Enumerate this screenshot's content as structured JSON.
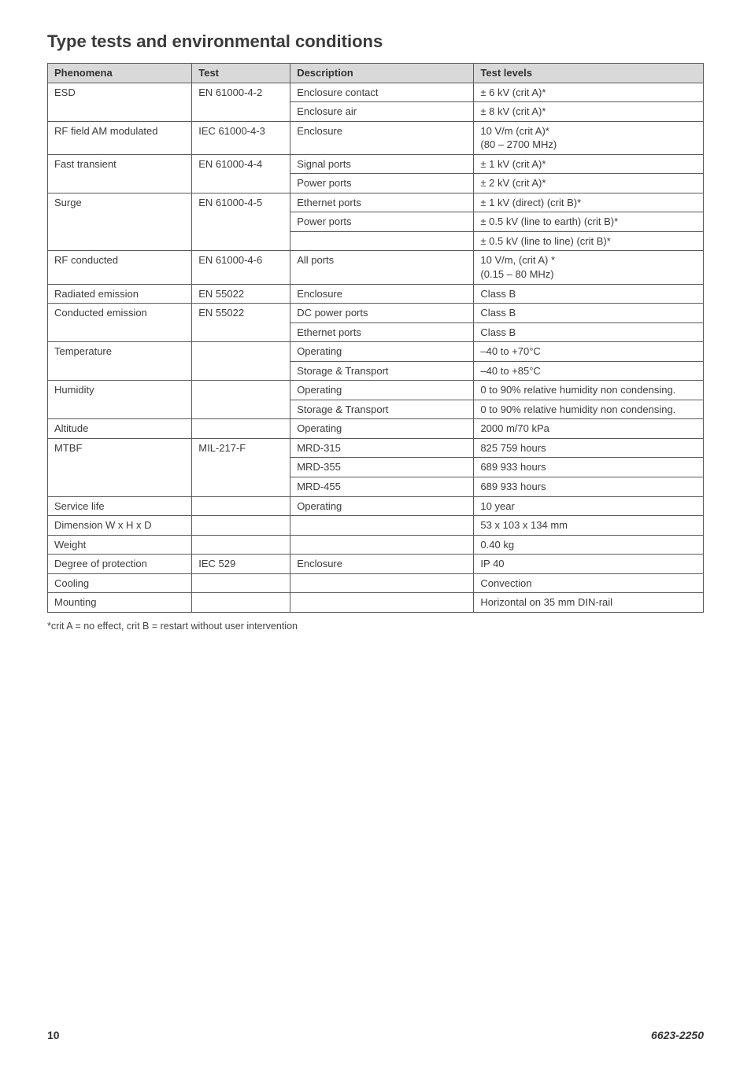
{
  "title": "Type tests and environmental conditions",
  "columns": [
    "Phenomena",
    "Test",
    "Description",
    "Test levels"
  ],
  "col_widths_pct": [
    22,
    15,
    28,
    35
  ],
  "header_bg": "#d9d9d9",
  "border_color": "#5a5a5a",
  "text_color": "#3b3b3b",
  "font_family": "Gill Sans",
  "title_fontsize_pt": 16,
  "body_fontsize_pt": 10,
  "rows": [
    {
      "phen": "ESD",
      "test": "EN 61000-4-2",
      "desc": "Enclosure contact",
      "lvl": "± 6 kV (crit A)*",
      "phen_rowspan": 2,
      "test_rowspan": 2
    },
    {
      "desc": "Enclosure air",
      "lvl": "± 8 kV (crit A)*"
    },
    {
      "phen": "RF field AM modulated",
      "test": "IEC 61000-4-3",
      "desc": "Enclosure",
      "lvl": "10 V/m (crit A)*\n(80 – 2700 MHz)"
    },
    {
      "phen": "Fast transient",
      "test": "EN 61000-4-4",
      "desc": "Signal ports",
      "lvl": "± 1 kV (crit A)*",
      "phen_rowspan": 2,
      "test_rowspan": 2
    },
    {
      "desc": "Power ports",
      "lvl": "± 2 kV (crit A)*"
    },
    {
      "phen": "Surge",
      "test": "EN 61000-4-5",
      "desc": "Ethernet ports",
      "lvl": "± 1 kV (direct) (crit B)*",
      "phen_rowspan": 3,
      "test_rowspan": 3
    },
    {
      "desc": "Power ports",
      "lvl": "± 0.5 kV (line to earth) (crit B)*"
    },
    {
      "desc": "",
      "lvl": "± 0.5 kV (line to line) (crit B)*"
    },
    {
      "phen": "RF conducted",
      "test": "EN 61000-4-6",
      "desc": "All ports",
      "lvl": "10 V/m, (crit A) *\n(0.15 – 80 MHz)"
    },
    {
      "phen": "Radiated emission",
      "test": "EN 55022",
      "desc": "Enclosure",
      "lvl": "Class B"
    },
    {
      "phen": "Conducted emission",
      "test": "EN 55022",
      "desc": "DC power ports",
      "lvl": "Class B",
      "phen_rowspan": 2,
      "test_rowspan": 2
    },
    {
      "desc": "Ethernet ports",
      "lvl": "Class B"
    },
    {
      "phen": "Temperature",
      "test": "",
      "desc": "Operating",
      "lvl": "–40 to +70°C",
      "phen_rowspan": 2,
      "test_rowspan": 2
    },
    {
      "desc": "Storage & Transport",
      "lvl": "–40 to +85°C"
    },
    {
      "phen": "Humidity",
      "test": "",
      "desc": "Operating",
      "lvl": "0 to 90% relative humidity non condensing.",
      "phen_rowspan": 2,
      "test_rowspan": 2
    },
    {
      "desc": "Storage & Transport",
      "lvl": "0 to 90% relative humidity non condensing."
    },
    {
      "phen": "Altitude",
      "test": "",
      "desc": "Operating",
      "lvl": "2000 m/70 kPa"
    },
    {
      "phen": "MTBF",
      "test": "MIL-217-F",
      "desc": "MRD-315",
      "lvl": "825 759 hours",
      "phen_rowspan": 3,
      "test_rowspan": 3
    },
    {
      "desc": "MRD-355",
      "lvl": "689 933 hours"
    },
    {
      "desc": "MRD-455",
      "lvl": "689 933 hours"
    },
    {
      "phen": "Service life",
      "test": "",
      "desc": "Operating",
      "lvl": "10 year"
    },
    {
      "phen": "Dimension W x H x D",
      "test": "",
      "desc": "",
      "lvl": "53 x 103 x 134 mm"
    },
    {
      "phen": "Weight",
      "test": "",
      "desc": "",
      "lvl": "0.40 kg"
    },
    {
      "phen": "Degree of protection",
      "test": "IEC 529",
      "desc": "Enclosure",
      "lvl": "IP 40"
    },
    {
      "phen": "Cooling",
      "test": "",
      "desc": "",
      "lvl": "Convection"
    },
    {
      "phen": "Mounting",
      "test": "",
      "desc": "",
      "lvl": "Horizontal on 35 mm DIN-rail"
    }
  ],
  "footnote": "*crit A = no effect, crit B = restart without user intervention",
  "footer": {
    "page_number": "10",
    "doc_id": "6623-2250"
  }
}
